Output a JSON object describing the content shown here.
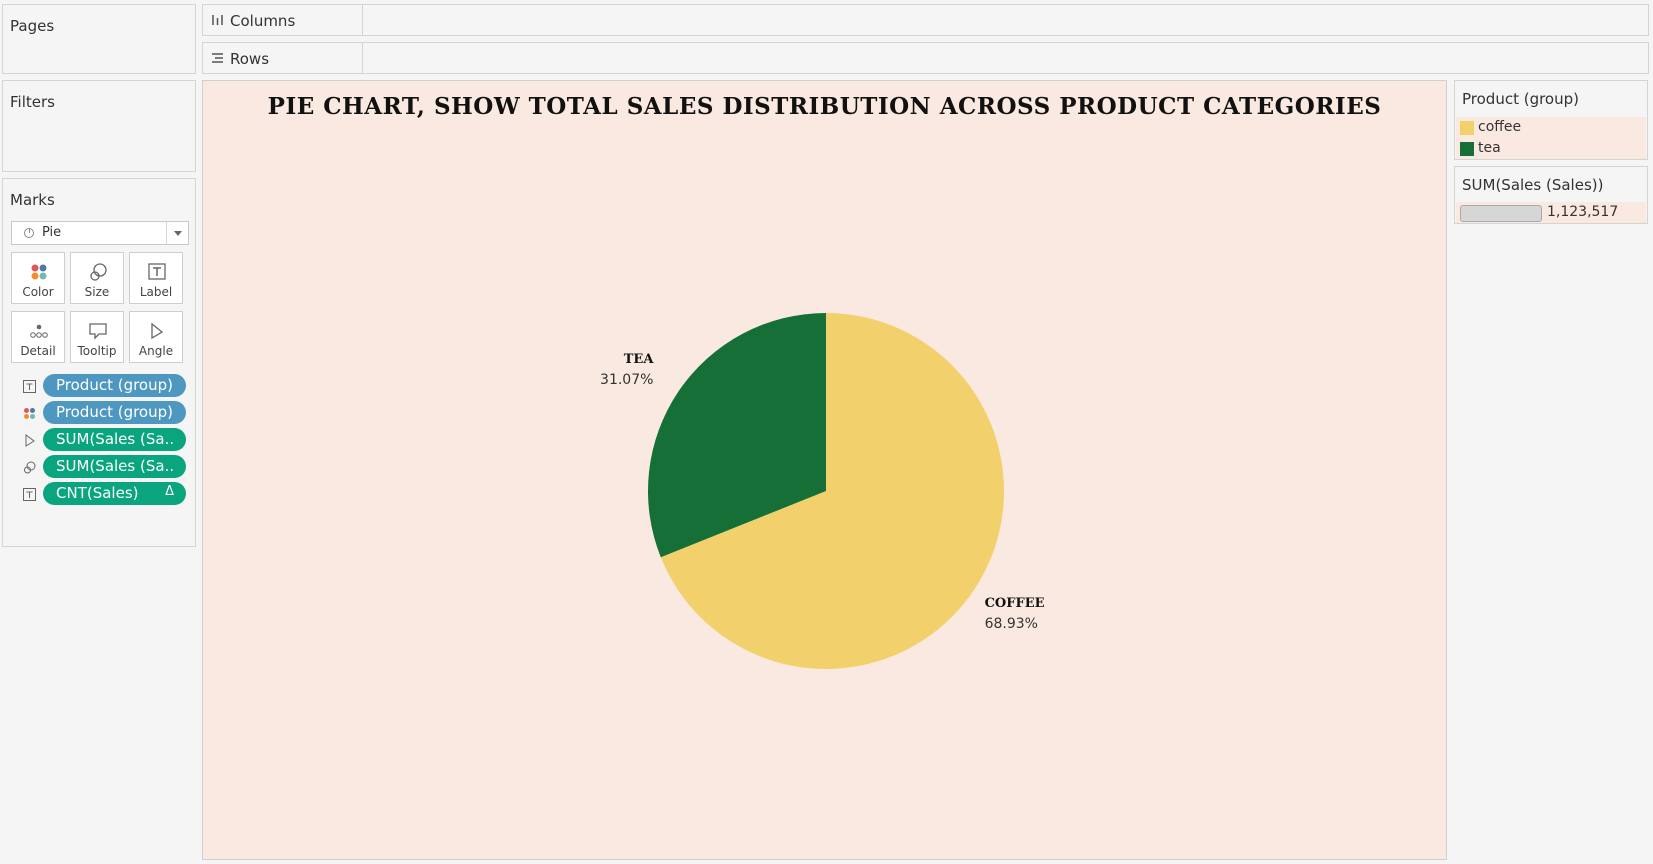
{
  "panes": {
    "pages_title": "Pages",
    "filters_title": "Filters",
    "marks_title": "Marks"
  },
  "marks": {
    "type": "Pie",
    "buttons": [
      "Color",
      "Size",
      "Label",
      "Detail",
      "Tooltip",
      "Angle"
    ],
    "pills": [
      {
        "icon": "label-icon",
        "text": "Product (group)",
        "kind": "dimension"
      },
      {
        "icon": "color-icon",
        "text": "Product (group)",
        "kind": "dimension"
      },
      {
        "icon": "angle-icon",
        "text": "SUM(Sales (Sa..",
        "kind": "measure"
      },
      {
        "icon": "size-icon",
        "text": "SUM(Sales (Sa..",
        "kind": "measure"
      },
      {
        "icon": "label-icon",
        "text": "CNT(Sales)",
        "kind": "measure",
        "delta": "Δ"
      }
    ]
  },
  "shelves": {
    "columns": "Columns",
    "rows": "Rows"
  },
  "legend": {
    "color_title": "Product (group)",
    "items": [
      {
        "label": "coffee",
        "color": "#f2d06b"
      },
      {
        "label": "tea",
        "color": "#156f36"
      }
    ],
    "size_title": "SUM(Sales (Sales))",
    "size_value": "1,123,517"
  },
  "chart_data": {
    "type": "pie",
    "title": "PIE CHART, SHOW TOTAL SALES DISTRIBUTION ACROSS PRODUCT CATEGORIES",
    "background": "#fae9e0",
    "slices": [
      {
        "name": "COFFEE",
        "label": "68.93%",
        "value": 68.93,
        "color": "#f2d06b"
      },
      {
        "name": "TEA",
        "label": "31.07%",
        "value": 31.07,
        "color": "#156f36"
      }
    ]
  }
}
